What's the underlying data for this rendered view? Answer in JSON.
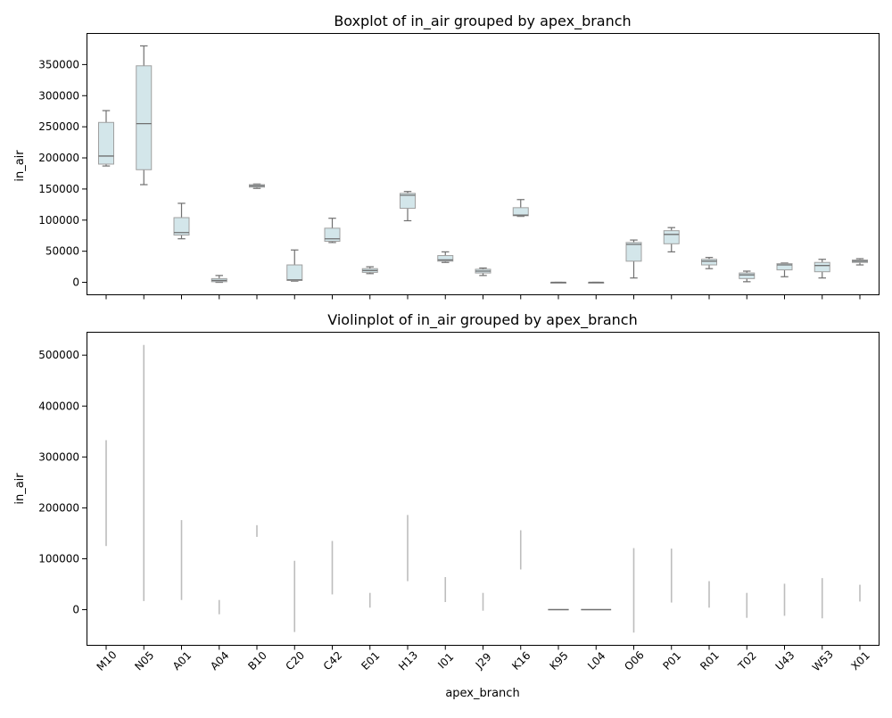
{
  "chart_data": [
    {
      "type": "box",
      "title": "Boxplot of in_air grouped by apex_branch",
      "xlabel": "",
      "ylabel": "in_air",
      "ylim": [
        -20000,
        400000
      ],
      "yticks": [
        0,
        50000,
        100000,
        150000,
        200000,
        250000,
        300000,
        350000
      ],
      "categories": [
        "M10",
        "N05",
        "A01",
        "A04",
        "B10",
        "C20",
        "C42",
        "E01",
        "H13",
        "I01",
        "J29",
        "K16",
        "K95",
        "L04",
        "O06",
        "P01",
        "R01",
        "T02",
        "U43",
        "W53",
        "X01"
      ],
      "boxes": [
        {
          "min": 187000,
          "q1": 190000,
          "median": 203000,
          "q3": 257000,
          "max": 276000
        },
        {
          "min": 157000,
          "q1": 181000,
          "median": 255000,
          "q3": 348000,
          "max": 380000
        },
        {
          "min": 70000,
          "q1": 76000,
          "median": 80000,
          "q3": 104000,
          "max": 127000
        },
        {
          "min": 0,
          "q1": 1000,
          "median": 3000,
          "q3": 6000,
          "max": 11000
        },
        {
          "min": 151000,
          "q1": 153000,
          "median": 155000,
          "q3": 157000,
          "max": 158000
        },
        {
          "min": 2000,
          "q1": 3000,
          "median": 4000,
          "q3": 28000,
          "max": 52000
        },
        {
          "min": 64000,
          "q1": 66000,
          "median": 70000,
          "q3": 87000,
          "max": 103000
        },
        {
          "min": 14000,
          "q1": 16000,
          "median": 19000,
          "q3": 22000,
          "max": 25000
        },
        {
          "min": 99000,
          "q1": 119000,
          "median": 140000,
          "q3": 143000,
          "max": 146000
        },
        {
          "min": 32000,
          "q1": 34000,
          "median": 36000,
          "q3": 43000,
          "max": 49000
        },
        {
          "min": 11000,
          "q1": 15000,
          "median": 18000,
          "q3": 21000,
          "max": 23000
        },
        {
          "min": 106000,
          "q1": 107000,
          "median": 108000,
          "q3": 120000,
          "max": 133000
        },
        {
          "min": 0,
          "q1": 0,
          "median": 0,
          "q3": 0,
          "max": 0
        },
        {
          "min": 0,
          "q1": 0,
          "median": 0,
          "q3": 0,
          "max": 0
        },
        {
          "min": 7000,
          "q1": 34000,
          "median": 61000,
          "q3": 64000,
          "max": 68000
        },
        {
          "min": 49000,
          "q1": 62000,
          "median": 77000,
          "q3": 83000,
          "max": 88000
        },
        {
          "min": 22000,
          "q1": 28000,
          "median": 34000,
          "q3": 37000,
          "max": 40000
        },
        {
          "min": 1000,
          "q1": 6000,
          "median": 12000,
          "q3": 15000,
          "max": 18000
        },
        {
          "min": 9000,
          "q1": 20000,
          "median": 28000,
          "q3": 30000,
          "max": 31000
        },
        {
          "min": 7000,
          "q1": 17000,
          "median": 27000,
          "q3": 32000,
          "max": 37000
        },
        {
          "min": 28000,
          "q1": 32000,
          "median": 34000,
          "q3": 36000,
          "max": 38000
        }
      ],
      "box_color": "#d3e6ea",
      "line_color": "#707070"
    },
    {
      "type": "violin",
      "title": "Violinplot of in_air grouped by apex_branch",
      "xlabel": "apex_branch",
      "ylabel": "in_air",
      "ylim": [
        -70000,
        545000
      ],
      "yticks": [
        0,
        100000,
        200000,
        300000,
        400000,
        500000
      ],
      "categories": [
        "M10",
        "N05",
        "A01",
        "A04",
        "B10",
        "C20",
        "C42",
        "E01",
        "H13",
        "I01",
        "J29",
        "K16",
        "K95",
        "L04",
        "O06",
        "P01",
        "R01",
        "T02",
        "U43",
        "W53",
        "X01"
      ],
      "ranges": [
        {
          "min": 125000,
          "max": 333000
        },
        {
          "min": 17000,
          "max": 520000
        },
        {
          "min": 19000,
          "max": 176000
        },
        {
          "min": -9000,
          "max": 19000
        },
        {
          "min": 143000,
          "max": 166000
        },
        {
          "min": -44000,
          "max": 96000
        },
        {
          "min": 30000,
          "max": 135000
        },
        {
          "min": 4000,
          "max": 33000
        },
        {
          "min": 56000,
          "max": 186000
        },
        {
          "min": 15000,
          "max": 64000
        },
        {
          "min": -2000,
          "max": 33000
        },
        {
          "min": 79000,
          "max": 156000
        },
        {
          "min": 0,
          "max": 0,
          "width": 0.55
        },
        {
          "min": 0,
          "max": 0,
          "width": 0.8
        },
        {
          "min": -45000,
          "max": 121000
        },
        {
          "min": 14000,
          "max": 120000
        },
        {
          "min": 4000,
          "max": 56000
        },
        {
          "min": -16000,
          "max": 33000
        },
        {
          "min": -12000,
          "max": 51000
        },
        {
          "min": -17000,
          "max": 62000
        },
        {
          "min": 16000,
          "max": 49000
        }
      ],
      "line_color": "#bdbdbd",
      "flat_color": "#707070"
    }
  ]
}
